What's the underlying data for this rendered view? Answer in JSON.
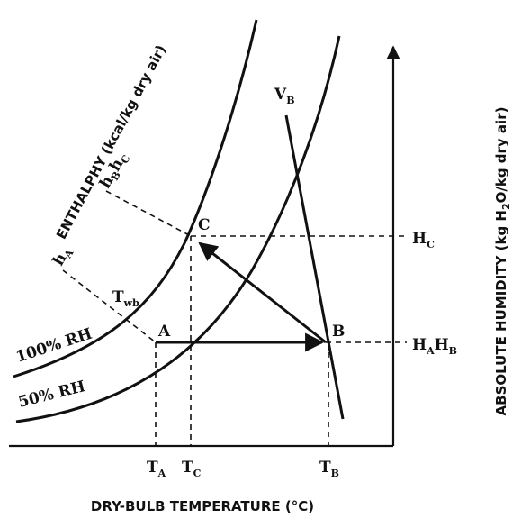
{
  "diagram": {
    "x_axis_title": "DRY-BULB TEMPERATURE (°C)",
    "y_axis_title": {
      "pre": "ABSOLUTE HUMIDITY (kg H",
      "sub": "2",
      "post": "O/kg dry air)"
    },
    "enthalpy_title": "ENTHALPHY (kcal/kg dry air)",
    "curves": [
      "100% RH",
      "50% RH"
    ],
    "volume_line": {
      "main": "V",
      "sub": "B"
    },
    "enthalpy_lines": [
      {
        "main": "h",
        "sub": "A"
      },
      {
        "parts": [
          {
            "main": "h",
            "sub": "B"
          },
          {
            "main": "h",
            "sub": "C"
          }
        ]
      }
    ],
    "wet_bulb": {
      "main": "T",
      "sub": "wb"
    },
    "points": [
      "A",
      "B",
      "C"
    ],
    "humidity_labels": [
      {
        "main": "H",
        "sub": "C"
      },
      {
        "parts": [
          {
            "main": "H",
            "sub": "A"
          },
          {
            "main": "H",
            "sub": "B"
          }
        ]
      }
    ],
    "temperature_labels": [
      {
        "main": "T",
        "sub": "A"
      },
      {
        "main": "T",
        "sub": "C"
      },
      {
        "main": "T",
        "sub": "B"
      }
    ]
  }
}
